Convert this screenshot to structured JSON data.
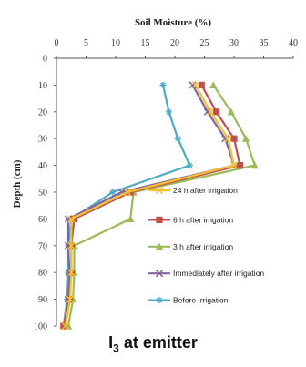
{
  "chart_data": {
    "type": "line",
    "title": "Soil Moisture (%)",
    "xlabel": "",
    "ylabel": "Depth (cm)",
    "x_axis_position": "top",
    "y_axis_inverted": true,
    "xlim": [
      0,
      40
    ],
    "ylim": [
      0,
      100
    ],
    "x_ticks": [
      0,
      5,
      10,
      15,
      20,
      25,
      30,
      35,
      40
    ],
    "y_ticks": [
      0,
      10,
      20,
      30,
      40,
      50,
      60,
      70,
      80,
      90,
      100
    ],
    "grid": false,
    "legend_position": "inside-right",
    "depth": [
      10,
      20,
      30,
      40,
      50,
      60,
      70,
      80,
      90,
      100
    ],
    "series": [
      {
        "name": "24 h after irrigation",
        "color": "#f2c230",
        "marker": "x",
        "moisture": [
          23.5,
          26,
          29,
          30,
          12,
          2.5,
          2.5,
          2.5,
          2.3,
          1.5
        ]
      },
      {
        "name": "6 h after irrigation",
        "color": "#c0504d",
        "marker": "square",
        "moisture": [
          24.5,
          27,
          30,
          31,
          12.5,
          3,
          2.5,
          2.5,
          2.2,
          1.2
        ]
      },
      {
        "name": "3 h after irrigation",
        "color": "#9bbb59",
        "marker": "triangle",
        "moisture": [
          26.5,
          29.5,
          32,
          33.5,
          13,
          12.5,
          3,
          3,
          2.8,
          2
        ]
      },
      {
        "name": "Immediately after irrigation",
        "color": "#8064a2",
        "marker": "x",
        "moisture": [
          23,
          25.5,
          28.5,
          30,
          11,
          2,
          2,
          2.2,
          2,
          1.5
        ]
      },
      {
        "name": "Before Irrigation",
        "color": "#4bacc6",
        "marker": "asterisk",
        "moisture": [
          18,
          19,
          20.5,
          22.5,
          9.5,
          2.5,
          2,
          2,
          1.8,
          1.2
        ]
      }
    ]
  },
  "caption": {
    "prefix": "I",
    "subscript": "3",
    "suffix": " at emitter"
  }
}
